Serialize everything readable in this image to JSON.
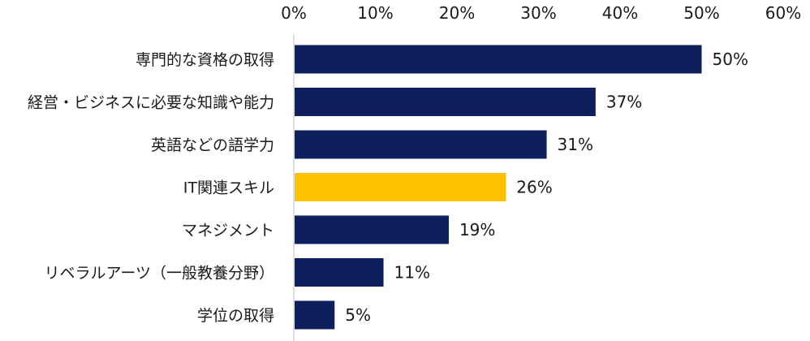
{
  "chart_data": {
    "type": "bar",
    "orientation": "horizontal",
    "title": "",
    "xlabel": "",
    "ylabel": "",
    "xlim": [
      0,
      60
    ],
    "ticks": [
      0,
      10,
      20,
      30,
      40,
      50,
      60
    ],
    "tick_labels": [
      "0%",
      "10%",
      "20%",
      "30%",
      "40%",
      "50%",
      "60%"
    ],
    "axis_position": "top",
    "grid": false,
    "categories": [
      "専門的な資格の取得",
      "経営・ビジネスに必要な知識や能力",
      "英語などの語学力",
      "IT関連スキル",
      "マネジメント",
      "リベラルアーツ（一般教養分野）",
      "学位の取得"
    ],
    "values": [
      50,
      37,
      31,
      26,
      19,
      11,
      5
    ],
    "value_labels": [
      "50%",
      "37%",
      "31%",
      "26%",
      "19%",
      "11%",
      "5%"
    ],
    "colors": {
      "default": "#0d1f5c",
      "highlight": "#ffc000",
      "highlight_index": 3,
      "axis": "#bfbfbf"
    }
  }
}
